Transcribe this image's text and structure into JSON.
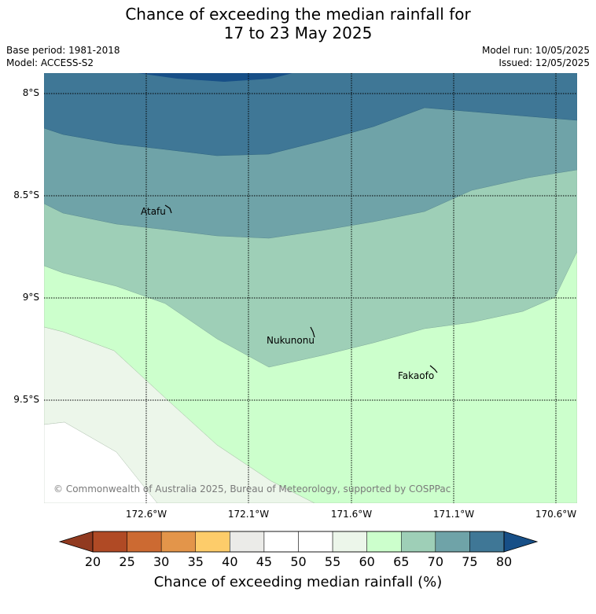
{
  "title": {
    "line1": "Chance of exceeding the median rainfall for",
    "line2": "17 to 23 May 2025"
  },
  "meta": {
    "base_period": "Base period: 1981-2018",
    "model": "Model: ACCESS-S2",
    "model_run": "Model run: 10/05/2025",
    "issued": "Issued: 12/05/2025"
  },
  "map": {
    "y_ticks": [
      "8°S",
      "8.5°S",
      "9°S",
      "9.5°S"
    ],
    "x_ticks": [
      "172.6°W",
      "172.1°W",
      "171.6°W",
      "171.1°W",
      "170.6°W"
    ],
    "places": [
      "Atafu",
      "Nukunonu",
      "Fakaofo"
    ],
    "copyright": "© Commonwealth of Australia 2025, Bureau of Meteorology, supported by COSPPac"
  },
  "colorbar": {
    "label": "Chance of exceeding median rainfall (%)",
    "ticks": [
      "20",
      "25",
      "30",
      "35",
      "40",
      "45",
      "50",
      "55",
      "60",
      "65",
      "70",
      "75",
      "80"
    ],
    "colors": [
      "#b04a25",
      "#cc6a32",
      "#e3954a",
      "#fdcc6a",
      "#ebebe8",
      "#ffffff",
      "#ffffff",
      "#ecf6ea",
      "#ccffcc",
      "#9ecfb7",
      "#6fa3a8",
      "#3f7796"
    ],
    "low_extend_color": "#913a20",
    "high_extend_color": "#174f87"
  },
  "legend_bands": {
    "darkest": "#174f87",
    "dark": "#3f7796",
    "mid": "#6fa3a8",
    "light": "#9ecfb7",
    "green": "#ccffcc",
    "pale": "#ecf6ea",
    "white": "#ffffff"
  }
}
